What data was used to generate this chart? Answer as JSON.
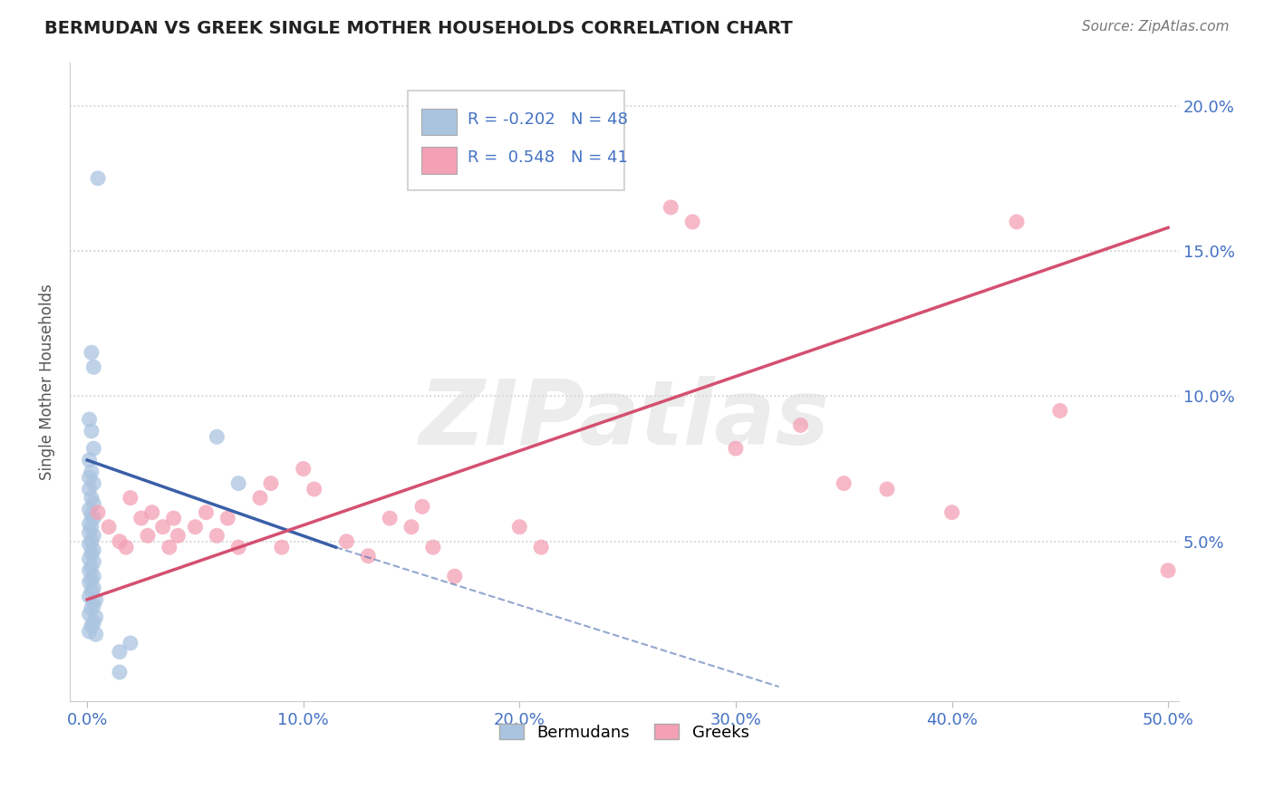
{
  "title": "BERMUDAN VS GREEK SINGLE MOTHER HOUSEHOLDS CORRELATION CHART",
  "source": "Source: ZipAtlas.com",
  "ylabel": "Single Mother Households",
  "xlim": [
    0.0,
    0.5
  ],
  "ylim": [
    0.0,
    0.215
  ],
  "xtick_vals": [
    0.0,
    0.1,
    0.2,
    0.3,
    0.4,
    0.5
  ],
  "ytick_vals": [
    0.05,
    0.1,
    0.15,
    0.2
  ],
  "ytick_labels": [
    "5.0%",
    "10.0%",
    "15.0%",
    "20.0%"
  ],
  "xtick_labels": [
    "0.0%",
    "10.0%",
    "20.0%",
    "30.0%",
    "40.0%",
    "50.0%"
  ],
  "blue_R": -0.202,
  "blue_N": 48,
  "pink_R": 0.548,
  "pink_N": 41,
  "blue_color": "#aac4e0",
  "pink_color": "#f4a0b5",
  "blue_line_color": "#3a5fa8",
  "pink_line_color": "#d45070",
  "watermark_text": "ZIPatlas",
  "blue_line_x0": 0.0,
  "blue_line_y0": 0.078,
  "blue_line_x1": 0.115,
  "blue_line_y1": 0.048,
  "blue_line_dash_x1": 0.32,
  "blue_line_dash_y1": 0.0,
  "pink_line_x0": 0.0,
  "pink_line_y0": 0.03,
  "pink_line_x1": 0.5,
  "pink_line_y1": 0.158,
  "blue_dots": [
    [
      0.005,
      0.175
    ],
    [
      0.002,
      0.115
    ],
    [
      0.003,
      0.11
    ],
    [
      0.001,
      0.092
    ],
    [
      0.002,
      0.088
    ],
    [
      0.003,
      0.082
    ],
    [
      0.001,
      0.078
    ],
    [
      0.002,
      0.074
    ],
    [
      0.001,
      0.072
    ],
    [
      0.003,
      0.07
    ],
    [
      0.001,
      0.068
    ],
    [
      0.002,
      0.065
    ],
    [
      0.003,
      0.063
    ],
    [
      0.001,
      0.061
    ],
    [
      0.002,
      0.059
    ],
    [
      0.003,
      0.058
    ],
    [
      0.001,
      0.056
    ],
    [
      0.002,
      0.055
    ],
    [
      0.001,
      0.053
    ],
    [
      0.003,
      0.052
    ],
    [
      0.002,
      0.05
    ],
    [
      0.001,
      0.049
    ],
    [
      0.003,
      0.047
    ],
    [
      0.002,
      0.046
    ],
    [
      0.001,
      0.044
    ],
    [
      0.003,
      0.043
    ],
    [
      0.002,
      0.041
    ],
    [
      0.001,
      0.04
    ],
    [
      0.003,
      0.038
    ],
    [
      0.002,
      0.037
    ],
    [
      0.001,
      0.036
    ],
    [
      0.003,
      0.034
    ],
    [
      0.002,
      0.033
    ],
    [
      0.001,
      0.031
    ],
    [
      0.004,
      0.03
    ],
    [
      0.003,
      0.028
    ],
    [
      0.002,
      0.027
    ],
    [
      0.001,
      0.025
    ],
    [
      0.004,
      0.024
    ],
    [
      0.003,
      0.022
    ],
    [
      0.002,
      0.021
    ],
    [
      0.001,
      0.019
    ],
    [
      0.004,
      0.018
    ],
    [
      0.06,
      0.086
    ],
    [
      0.07,
      0.07
    ],
    [
      0.02,
      0.015
    ],
    [
      0.015,
      0.012
    ],
    [
      0.015,
      0.005
    ]
  ],
  "pink_dots": [
    [
      0.005,
      0.06
    ],
    [
      0.01,
      0.055
    ],
    [
      0.015,
      0.05
    ],
    [
      0.018,
      0.048
    ],
    [
      0.02,
      0.065
    ],
    [
      0.025,
      0.058
    ],
    [
      0.028,
      0.052
    ],
    [
      0.03,
      0.06
    ],
    [
      0.035,
      0.055
    ],
    [
      0.038,
      0.048
    ],
    [
      0.04,
      0.058
    ],
    [
      0.042,
      0.052
    ],
    [
      0.05,
      0.055
    ],
    [
      0.055,
      0.06
    ],
    [
      0.06,
      0.052
    ],
    [
      0.065,
      0.058
    ],
    [
      0.07,
      0.048
    ],
    [
      0.08,
      0.065
    ],
    [
      0.085,
      0.07
    ],
    [
      0.09,
      0.048
    ],
    [
      0.1,
      0.075
    ],
    [
      0.105,
      0.068
    ],
    [
      0.12,
      0.05
    ],
    [
      0.13,
      0.045
    ],
    [
      0.14,
      0.058
    ],
    [
      0.15,
      0.055
    ],
    [
      0.155,
      0.062
    ],
    [
      0.16,
      0.048
    ],
    [
      0.17,
      0.038
    ],
    [
      0.2,
      0.055
    ],
    [
      0.21,
      0.048
    ],
    [
      0.27,
      0.165
    ],
    [
      0.28,
      0.16
    ],
    [
      0.3,
      0.082
    ],
    [
      0.33,
      0.09
    ],
    [
      0.35,
      0.07
    ],
    [
      0.37,
      0.068
    ],
    [
      0.4,
      0.06
    ],
    [
      0.43,
      0.16
    ],
    [
      0.45,
      0.095
    ],
    [
      0.5,
      0.04
    ]
  ]
}
